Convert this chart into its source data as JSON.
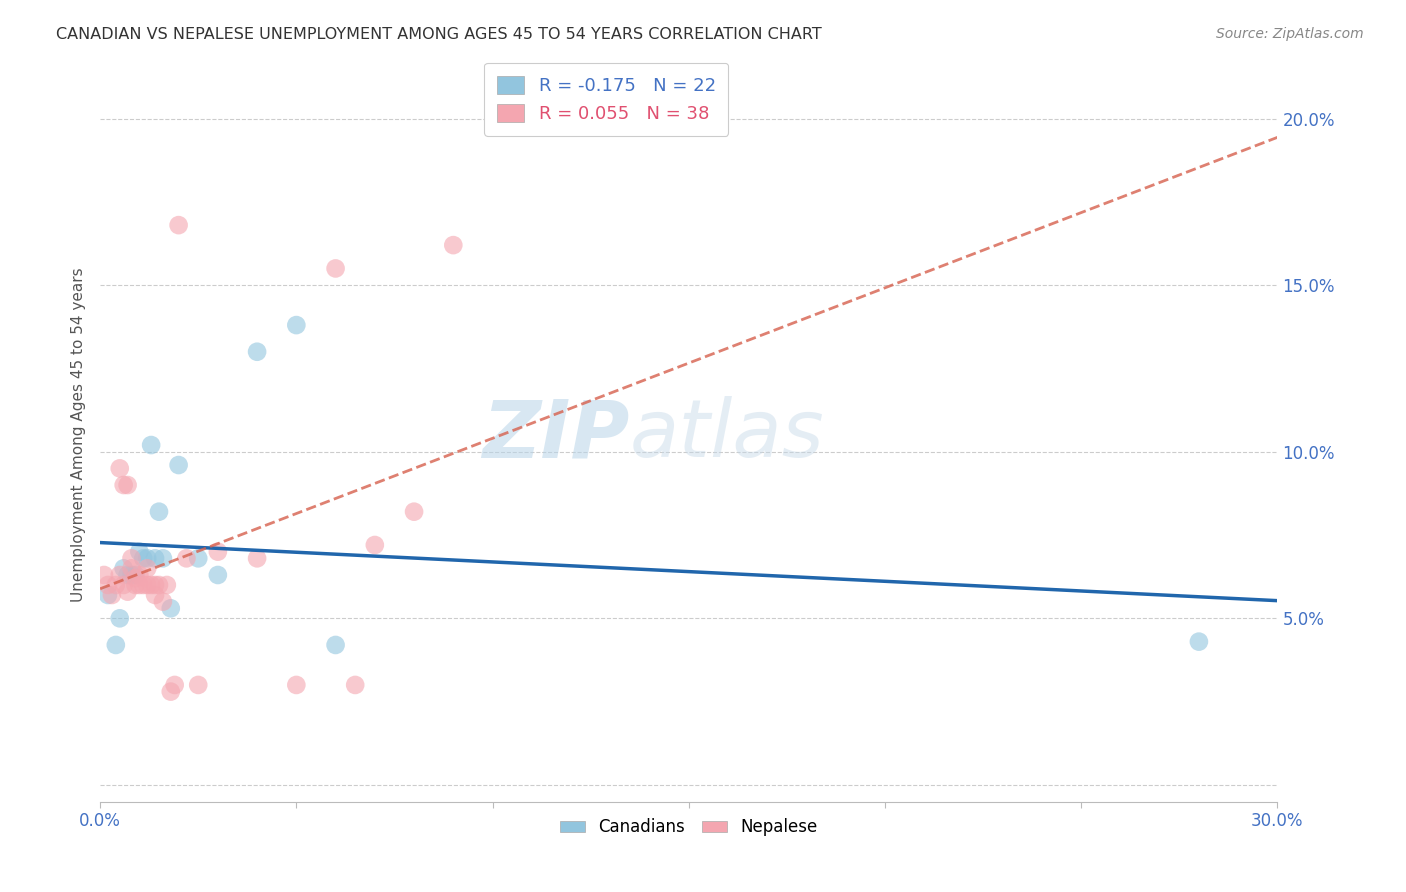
{
  "title": "CANADIAN VS NEPALESE UNEMPLOYMENT AMONG AGES 45 TO 54 YEARS CORRELATION CHART",
  "source": "Source: ZipAtlas.com",
  "ylabel": "Unemployment Among Ages 45 to 54 years",
  "xlim": [
    0.0,
    0.3
  ],
  "ylim": [
    -0.005,
    0.215
  ],
  "xticks": [
    0.0,
    0.3
  ],
  "xticklabels": [
    "0.0%",
    "30.0%"
  ],
  "yticks": [
    0.0,
    0.05,
    0.1,
    0.15,
    0.2
  ],
  "yticklabels": [
    "",
    "5.0%",
    "10.0%",
    "15.0%",
    "20.0%"
  ],
  "canadian_R": -0.175,
  "canadian_N": 22,
  "nepalese_R": 0.055,
  "nepalese_N": 38,
  "canadian_color": "#92c5de",
  "nepalese_color": "#f4a6b0",
  "canadian_line_color": "#2166ac",
  "nepalese_line_color": "#d6604d",
  "watermark_zip": "ZIP",
  "watermark_atlas": "atlas",
  "canadian_x": [
    0.002,
    0.004,
    0.005,
    0.006,
    0.007,
    0.008,
    0.009,
    0.01,
    0.011,
    0.012,
    0.013,
    0.014,
    0.015,
    0.016,
    0.018,
    0.02,
    0.025,
    0.03,
    0.04,
    0.05,
    0.06,
    0.28
  ],
  "canadian_y": [
    0.057,
    0.042,
    0.05,
    0.065,
    0.063,
    0.063,
    0.063,
    0.07,
    0.068,
    0.068,
    0.102,
    0.068,
    0.082,
    0.068,
    0.053,
    0.096,
    0.068,
    0.063,
    0.13,
    0.138,
    0.042,
    0.043
  ],
  "nepalese_x": [
    0.001,
    0.002,
    0.003,
    0.004,
    0.005,
    0.005,
    0.006,
    0.006,
    0.007,
    0.007,
    0.008,
    0.008,
    0.009,
    0.009,
    0.01,
    0.01,
    0.011,
    0.012,
    0.012,
    0.013,
    0.014,
    0.014,
    0.015,
    0.016,
    0.017,
    0.018,
    0.019,
    0.02,
    0.022,
    0.025,
    0.03,
    0.04,
    0.05,
    0.06,
    0.065,
    0.07,
    0.08,
    0.09
  ],
  "nepalese_y": [
    0.063,
    0.06,
    0.057,
    0.06,
    0.063,
    0.095,
    0.06,
    0.09,
    0.058,
    0.09,
    0.065,
    0.068,
    0.062,
    0.06,
    0.06,
    0.063,
    0.06,
    0.06,
    0.065,
    0.06,
    0.057,
    0.06,
    0.06,
    0.055,
    0.06,
    0.028,
    0.03,
    0.168,
    0.068,
    0.03,
    0.07,
    0.068,
    0.03,
    0.155,
    0.03,
    0.072,
    0.082,
    0.162
  ]
}
